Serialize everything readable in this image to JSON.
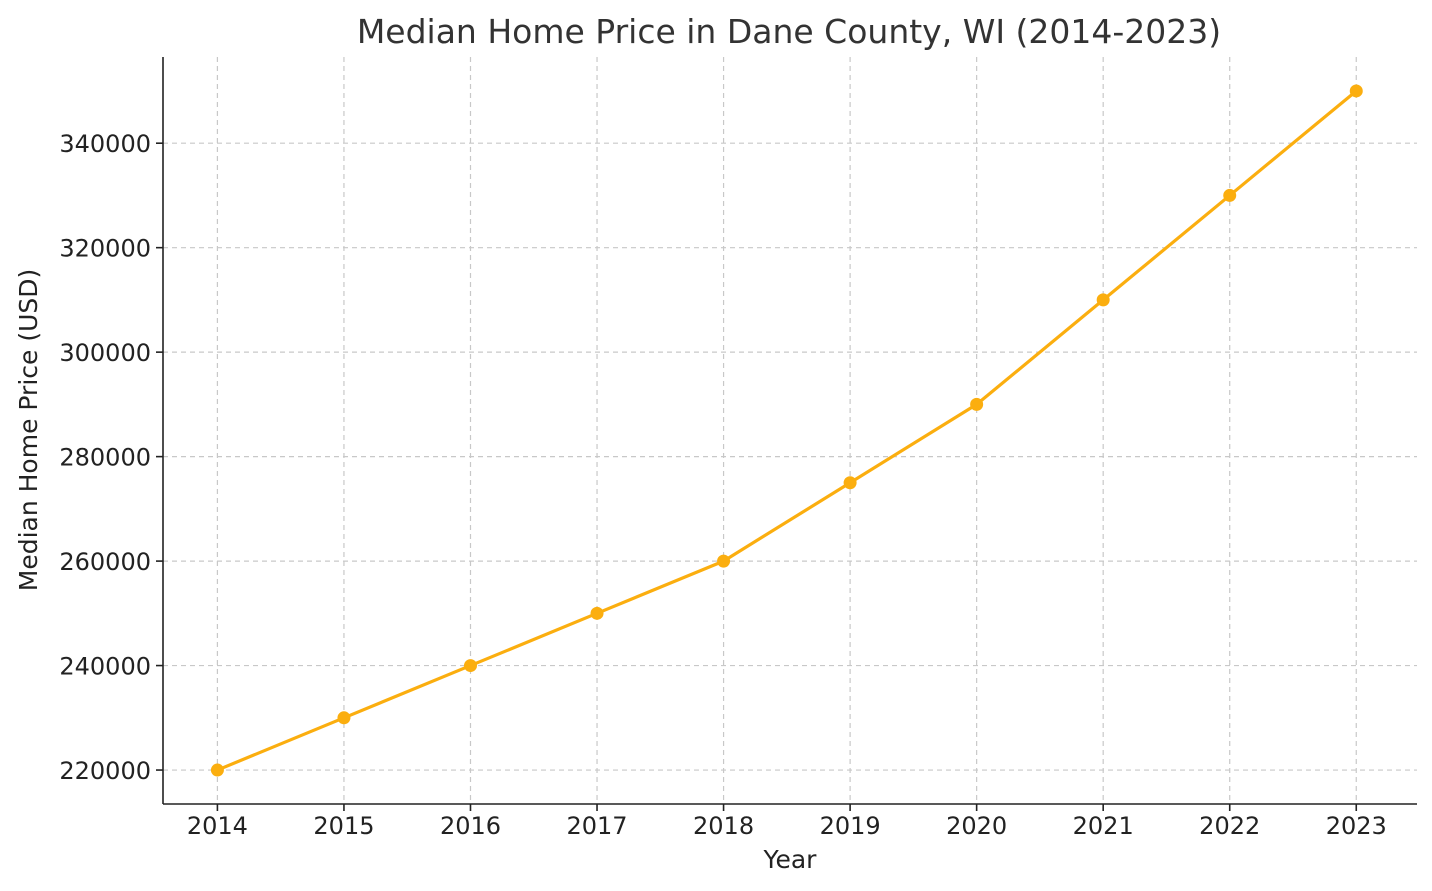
{
  "chart_data": {
    "type": "line",
    "title": "Median Home Price in Dane County, WI (2014-2023)",
    "xlabel": "Year",
    "ylabel": "Median Home Price (USD)",
    "x": [
      2014,
      2015,
      2016,
      2017,
      2018,
      2019,
      2020,
      2021,
      2022,
      2023
    ],
    "x_tick_labels": [
      "2014",
      "2015",
      "2016",
      "2017",
      "2018",
      "2019",
      "2020",
      "2021",
      "2022",
      "2023"
    ],
    "series": [
      {
        "values": [
          220000,
          230000,
          240000,
          250000,
          260000,
          275000,
          290000,
          310000,
          330000,
          350000
        ],
        "color": "#FBAE0F",
        "marker": "circle"
      }
    ],
    "y_ticks": [
      220000,
      240000,
      260000,
      280000,
      300000,
      320000,
      340000
    ],
    "y_tick_labels": [
      "220000",
      "240000",
      "260000",
      "280000",
      "300000",
      "320000",
      "340000"
    ],
    "xlim": [
      2013.57,
      2023.48
    ],
    "ylim": [
      213500,
      356500
    ],
    "grid": true,
    "legend": "none"
  }
}
